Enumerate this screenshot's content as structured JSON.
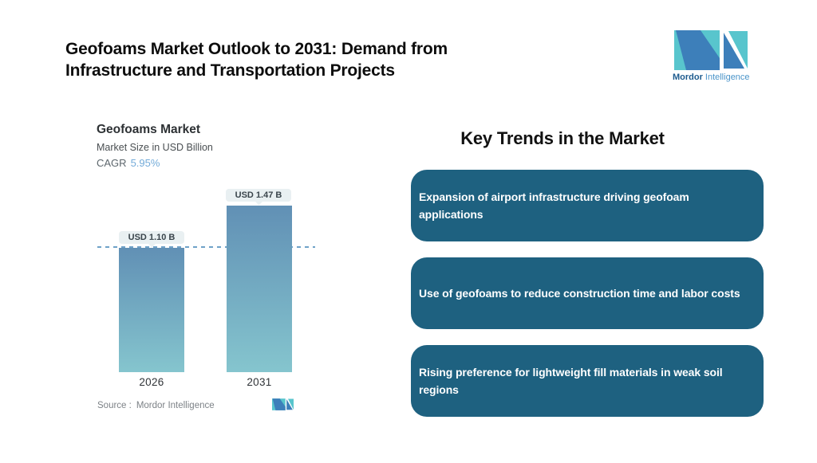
{
  "header": {
    "title_line1": "Geofoams Market Outlook to 2031: Demand from",
    "title_line2": "Infrastructure and Transportation Projects"
  },
  "brand": {
    "name_primary": "Mordor",
    "name_secondary": "Intelligence",
    "logo_teal": "#58c5cd",
    "logo_blue": "#3d7fba"
  },
  "chart": {
    "title": "Geofoams Market",
    "subtitle": "Market Size in USD Billion",
    "cagr_label": "CAGR",
    "cagr_value": "5.95%",
    "source_label": "Source :",
    "source_value": "Mordor Intelligence"
  },
  "chart_data": {
    "type": "bar",
    "title": "Geofoams Market",
    "ylabel": "Market Size in USD Billion",
    "categories": [
      "2026",
      "2031"
    ],
    "values": [
      1.1,
      1.47
    ],
    "value_labels": [
      "USD 1.10 B",
      "USD 1.47 B"
    ],
    "cagr_pct": 5.95,
    "reference_line_at": 1.1,
    "grid": false,
    "legend": false,
    "bar_gradient_top": "#6190b5",
    "bar_gradient_bottom": "#85c5ce",
    "dash_color": "#6fa2c8",
    "label_pill_bg": "#e9f0f2"
  },
  "key_trends": {
    "heading": "Key Trends in the Market",
    "box_color": "#1e6180",
    "items": [
      {
        "text": "Expansion of airport infrastructure driving geofoam applications"
      },
      {
        "text": "Use of geofoams to reduce construction time and labor costs"
      },
      {
        "text": "Rising preference for lightweight fill materials in weak soil regions"
      }
    ]
  }
}
